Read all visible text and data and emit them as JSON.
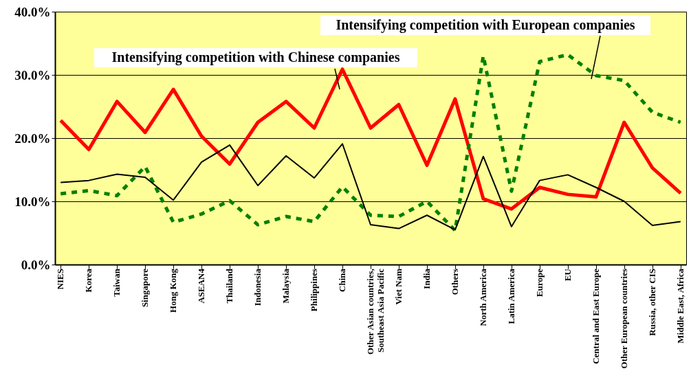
{
  "chart_data": {
    "type": "line",
    "categories": [
      "NIES",
      "Korea",
      "Taiwan",
      "Singapore",
      "Hong Kong",
      "ASEAN4",
      "Thailand",
      "Indonesia",
      "Malaysia",
      "Philippines",
      "China",
      "Other Asian countries, Southeast Asia Pacific",
      "Viet Nam",
      "India",
      "Others",
      "North America",
      "Latin America",
      "Europe",
      "EU",
      "Central and East Europe",
      "Other European countries",
      "Russia, other CIS",
      "Middle East, Africa"
    ],
    "series": [
      {
        "name": "Intensifying competition with Chinese companies",
        "color": "#ff0000",
        "line_style": "solid",
        "values": [
          22.8,
          18.2,
          25.8,
          20.9,
          27.7,
          20.3,
          15.9,
          22.5,
          25.8,
          21.6,
          30.9,
          21.6,
          25.3,
          15.7,
          26.2,
          10.4,
          8.8,
          12.2,
          11.1,
          10.7,
          22.5,
          15.3,
          11.3
        ]
      },
      {
        "name": "Intensifying competition with European companies",
        "color": "#008000",
        "line_style": "dashed",
        "values": [
          11.2,
          11.7,
          10.9,
          15.5,
          6.7,
          8.0,
          10.1,
          6.3,
          7.6,
          6.8,
          12.3,
          7.8,
          7.6,
          10.0,
          5.4,
          33.0,
          11.6,
          32.1,
          33.2,
          29.9,
          29.1,
          24.1,
          22.5
        ]
      },
      {
        "color": "#000000",
        "line_style": "solid",
        "values": [
          13.0,
          13.3,
          14.3,
          13.8,
          10.2,
          16.2,
          18.9,
          12.5,
          17.2,
          13.7,
          19.1,
          6.3,
          5.7,
          7.8,
          5.5,
          17.1,
          6.0,
          13.3,
          14.2,
          12.2,
          10.0,
          6.2,
          6.8
        ]
      }
    ],
    "ylim": [
      0,
      40
    ],
    "yticks": [
      {
        "value": 0,
        "label": "0.0%"
      },
      {
        "value": 10,
        "label": "10.0%"
      },
      {
        "value": 20,
        "label": "20.0%"
      },
      {
        "value": 30,
        "label": "30.0%"
      },
      {
        "value": 40,
        "label": "40.0%"
      }
    ],
    "grid": "y",
    "legend": false,
    "marker": "none"
  }
}
